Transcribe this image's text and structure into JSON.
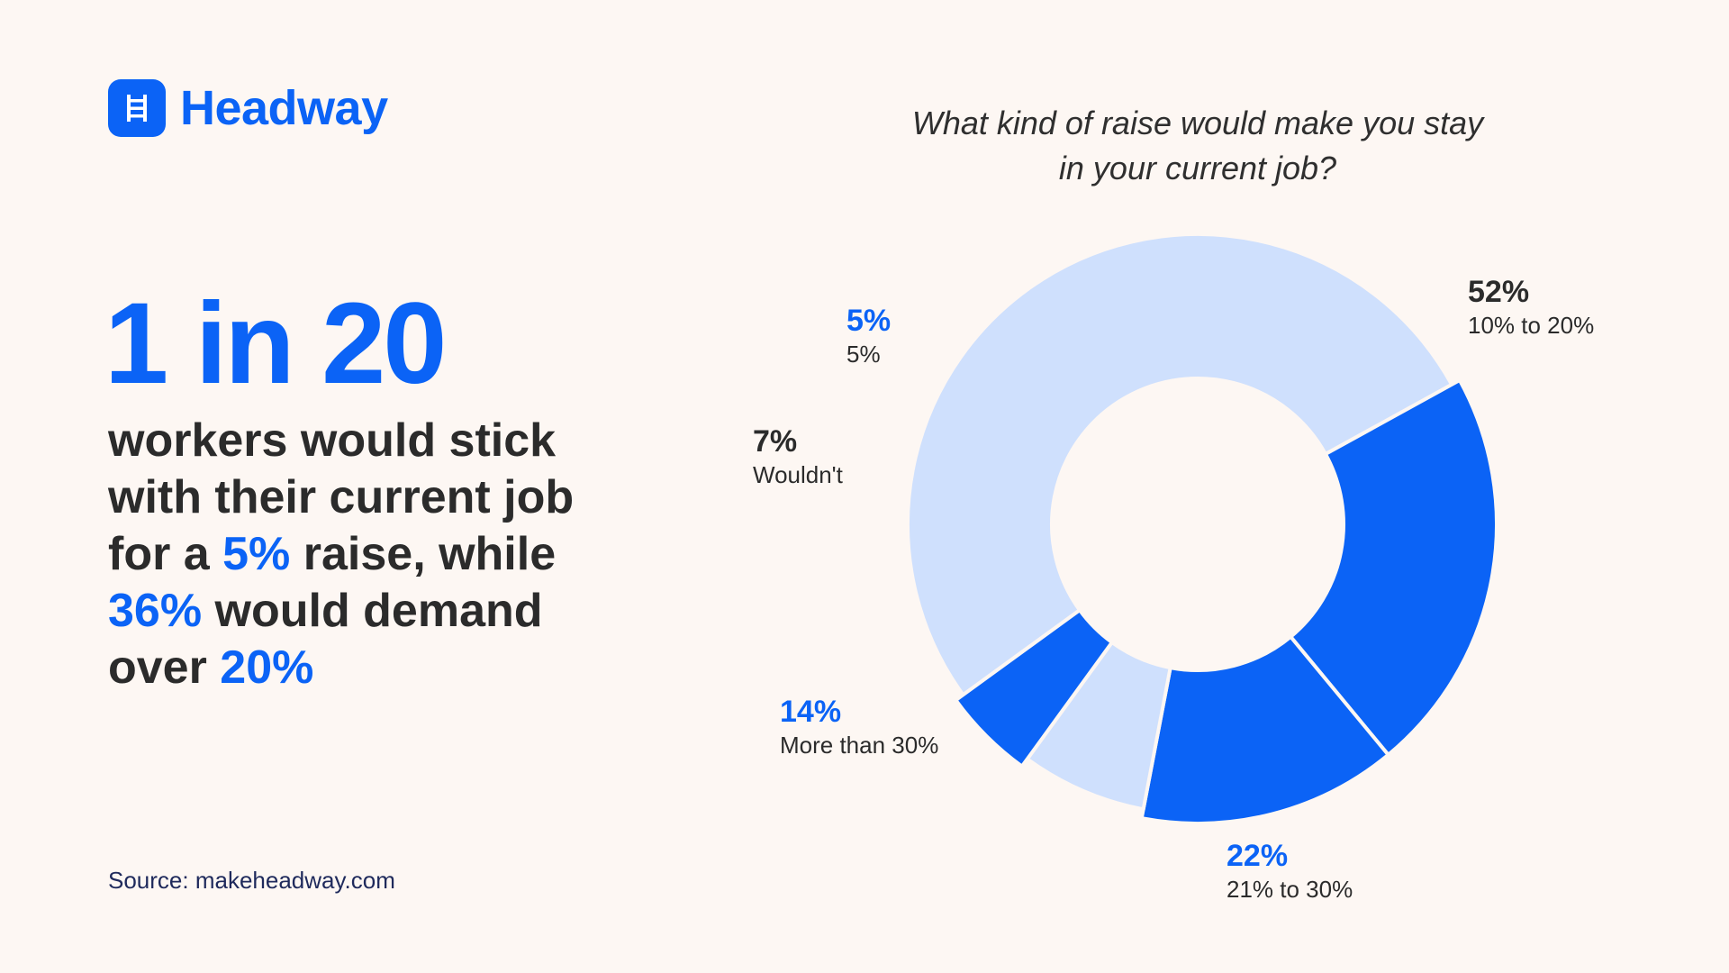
{
  "brand": {
    "name": "Headway",
    "primary_color": "#0b63f6",
    "light_color": "#cfe0fd"
  },
  "headline": {
    "stat": "1 in 20",
    "line1": "workers would stick",
    "line2": "with their current job",
    "line3_prefix": "for a ",
    "line3_highlight": "5%",
    "line3_suffix": " raise, while",
    "line4_highlight": "36%",
    "line4_suffix": " would demand",
    "line5_prefix": "over ",
    "line5_highlight": "20%"
  },
  "source": "Source: makeheadway.com",
  "chart_data": {
    "type": "pie",
    "title": "What kind of raise would make you stay in your current job?",
    "title_line1": "What kind of raise would make you stay",
    "title_line2": "in your current job?",
    "slices": [
      {
        "label": "10% to 20%",
        "value": 52,
        "value_label": "52%",
        "color": "#cfe0fd"
      },
      {
        "label": "21% to 30%",
        "value": 22,
        "value_label": "22%",
        "color": "#0b63f6"
      },
      {
        "label": "More than 30%",
        "value": 14,
        "value_label": "14%",
        "color": "#0b63f6"
      },
      {
        "label": "Wouldn't",
        "value": 7,
        "value_label": "7%",
        "color": "#cfe0fd"
      },
      {
        "label": "5%",
        "value": 5,
        "value_label": "5%",
        "color": "#0b63f6"
      }
    ]
  }
}
